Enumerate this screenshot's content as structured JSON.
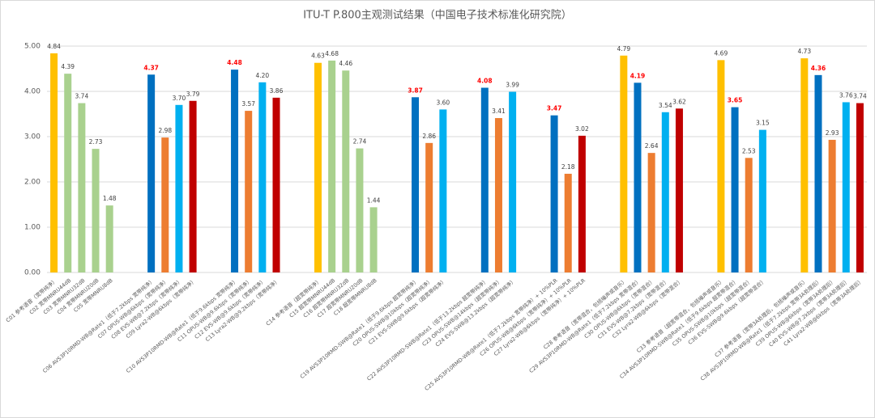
{
  "chart_data": {
    "type": "bar",
    "title": "ITU-T P.800主观测试结果（中国电子技术标准化研究院）",
    "categories": [
      "C01 参考语音（宽带纯净）",
      "C02 宽带MNRU44dB",
      "C03 宽带MNRU32dB",
      "C04 宽带MNRU20dB",
      "C05 宽带MNRU8dB",
      null,
      null,
      "C06 AVS3P10RMD-WB@Rate1（低于7.2kbps 宽带纯净）",
      "C07 OPUS-WB@6kbps（宽带纯净）",
      "C08 EVS-WB@7.2kbps（宽带纯净）",
      "C09 Lyra2-WB@6kbps（宽带纯净）",
      null,
      null,
      "C10 AVS3P10RMD-WB@Rate1（低于9.6kbps 宽带纯净）",
      "C11 OPUS-WB@9.6kbps（宽带纯净）",
      "C12 EVS-WB@9.6kbps（宽带纯净）",
      "C13 Lyra2-WB@9.2kbps（宽带纯净）",
      null,
      null,
      "C14 参考语音（超宽带纯净）",
      "C15 超宽带MNRU44dB",
      "C16 超宽带MNRU32dB",
      "C17 超宽带MNRU20dB",
      "C18 超宽带MNRU8dB",
      null,
      null,
      "C19 AVS3P10RMD-SWB@Rate1（低于9.6kbps 超宽带纯净）",
      "C20 OPUS-SWB@10kbps（超宽带纯净）",
      "C21 EVS-SWB@9.6kbps（超宽带纯净）",
      null,
      null,
      "C22 AVS3P10RMD-SWB@Rate1（低于13.2kbps 超宽带纯净）",
      "C23 OPUS-SWB@14kbps（超宽带纯净）",
      "C24 EVS-SWB@13.2kbps（超宽带纯净）",
      null,
      null,
      "C25 AVS3P10RMD-WB@Rate1（低于7.2kbps 宽带纯净）+ 10%PLR",
      "C26 OPUS-WB@6kbps（宽带纯净）+ 10%PLR",
      "C27 Lyra2-WB@6kbps（宽带纯净）+ 10%PLR",
      null,
      null,
      "C28 参考语音（宽带混合，包括噪声或音乐）",
      "C29 AVS3P10RMD-WB@Rate1（低于7.2kbps 宽带混合）",
      "C30 OPUS-WB@6kbps（宽带混合）",
      "C31 EVS-WB@7.2kbps（宽带混合）",
      "C32 Lyra2-WB@6kbps（宽带混合）",
      null,
      null,
      "C33 参考语音（超宽带混合，包括噪声或音乐）",
      "C34 AVS3P10RMD-SWB@Rate1（低于9.6kbps 超宽带混合）",
      "C35 OPUS-SWB@10kbps（超宽带混合）",
      "C36 EVS-SWB@9.6kbps（超宽带混合）",
      null,
      null,
      "C37 参考语音（宽带3A处理后，包括噪声或音乐）",
      "C38 AVS3P10RMD-WB@Rate1（低于7.2kbps 宽带3A处理后）",
      "C39 OPUS-WB@6kbps（宽带3A处理后）",
      "C40 EVS-WB@7.2kbps（宽带3A处理后）",
      "C41 Lyra2-WB@6kbps（宽带3A处理后）"
    ],
    "values": [
      4.84,
      4.39,
      3.74,
      2.73,
      1.48,
      null,
      null,
      4.37,
      2.98,
      3.7,
      3.79,
      null,
      null,
      4.48,
      3.57,
      4.2,
      3.86,
      null,
      null,
      4.63,
      4.68,
      4.46,
      2.74,
      1.44,
      null,
      null,
      3.87,
      2.86,
      3.6,
      null,
      null,
      4.08,
      3.41,
      3.99,
      null,
      null,
      3.47,
      2.18,
      3.02,
      null,
      null,
      4.79,
      4.19,
      2.64,
      3.54,
      3.62,
      null,
      null,
      4.69,
      3.65,
      2.53,
      3.15,
      null,
      null,
      4.73,
      4.36,
      2.93,
      3.76,
      3.74
    ],
    "value_labels": [
      "4.84",
      "4.39",
      "3.74",
      "2.73",
      "1.48",
      null,
      null,
      "4.37",
      "2.98",
      "3.70",
      "3.79",
      null,
      null,
      "4.48",
      "3.57",
      "4.20",
      "3.86",
      null,
      null,
      "4.63",
      "4.68",
      "4.46",
      "2.74",
      "1.44",
      null,
      null,
      "3.87",
      "2.86",
      "3.60",
      null,
      null,
      "4.08",
      "3.41",
      "3.99",
      null,
      null,
      "3.47",
      "2.18",
      "3.02",
      null,
      null,
      "4.79",
      "4.19",
      "2.64",
      "3.54",
      "3.62",
      null,
      null,
      "4.69",
      "3.65",
      "2.53",
      "3.15",
      null,
      null,
      "4.73",
      "4.36",
      "2.93",
      "3.76",
      "3.74"
    ],
    "colors": [
      "#ffc000",
      "#a9d18e",
      "#a9d18e",
      "#a9d18e",
      "#a9d18e",
      null,
      null,
      "#0070c0",
      "#ed7d31",
      "#00b0f0",
      "#c00000",
      null,
      null,
      "#0070c0",
      "#ed7d31",
      "#00b0f0",
      "#c00000",
      null,
      null,
      "#ffc000",
      "#a9d18e",
      "#a9d18e",
      "#a9d18e",
      "#a9d18e",
      null,
      null,
      "#0070c0",
      "#ed7d31",
      "#00b0f0",
      null,
      null,
      "#0070c0",
      "#ed7d31",
      "#00b0f0",
      null,
      null,
      "#0070c0",
      "#ed7d31",
      "#c00000",
      null,
      null,
      "#ffc000",
      "#0070c0",
      "#ed7d31",
      "#00b0f0",
      "#c00000",
      null,
      null,
      "#ffc000",
      "#0070c0",
      "#ed7d31",
      "#00b0f0",
      null,
      null,
      "#ffc000",
      "#0070c0",
      "#ed7d31",
      "#00b0f0",
      "#c00000"
    ],
    "value_label_colors": [
      "#404040",
      "#404040",
      "#404040",
      "#404040",
      "#404040",
      null,
      null,
      "#ff0000",
      "#404040",
      "#404040",
      "#404040",
      null,
      null,
      "#ff0000",
      "#404040",
      "#404040",
      "#404040",
      null,
      null,
      "#404040",
      "#404040",
      "#404040",
      "#404040",
      "#404040",
      null,
      null,
      "#ff0000",
      "#404040",
      "#404040",
      null,
      null,
      "#ff0000",
      "#404040",
      "#404040",
      null,
      null,
      "#ff0000",
      "#404040",
      "#404040",
      null,
      null,
      "#404040",
      "#ff0000",
      "#404040",
      "#404040",
      "#404040",
      null,
      null,
      "#404040",
      "#ff0000",
      "#404040",
      "#404040",
      null,
      null,
      "#404040",
      "#ff0000",
      "#404040",
      "#404040",
      "#404040"
    ],
    "ylim": [
      0,
      5
    ],
    "yticks": [
      {
        "value": 0,
        "label": "0.00"
      },
      {
        "value": 1,
        "label": "1.00"
      },
      {
        "value": 2,
        "label": "2.00"
      },
      {
        "value": 3,
        "label": "3.00"
      },
      {
        "value": 4,
        "label": "4.00"
      },
      {
        "value": 5,
        "label": "5.00"
      }
    ],
    "grid": true
  }
}
